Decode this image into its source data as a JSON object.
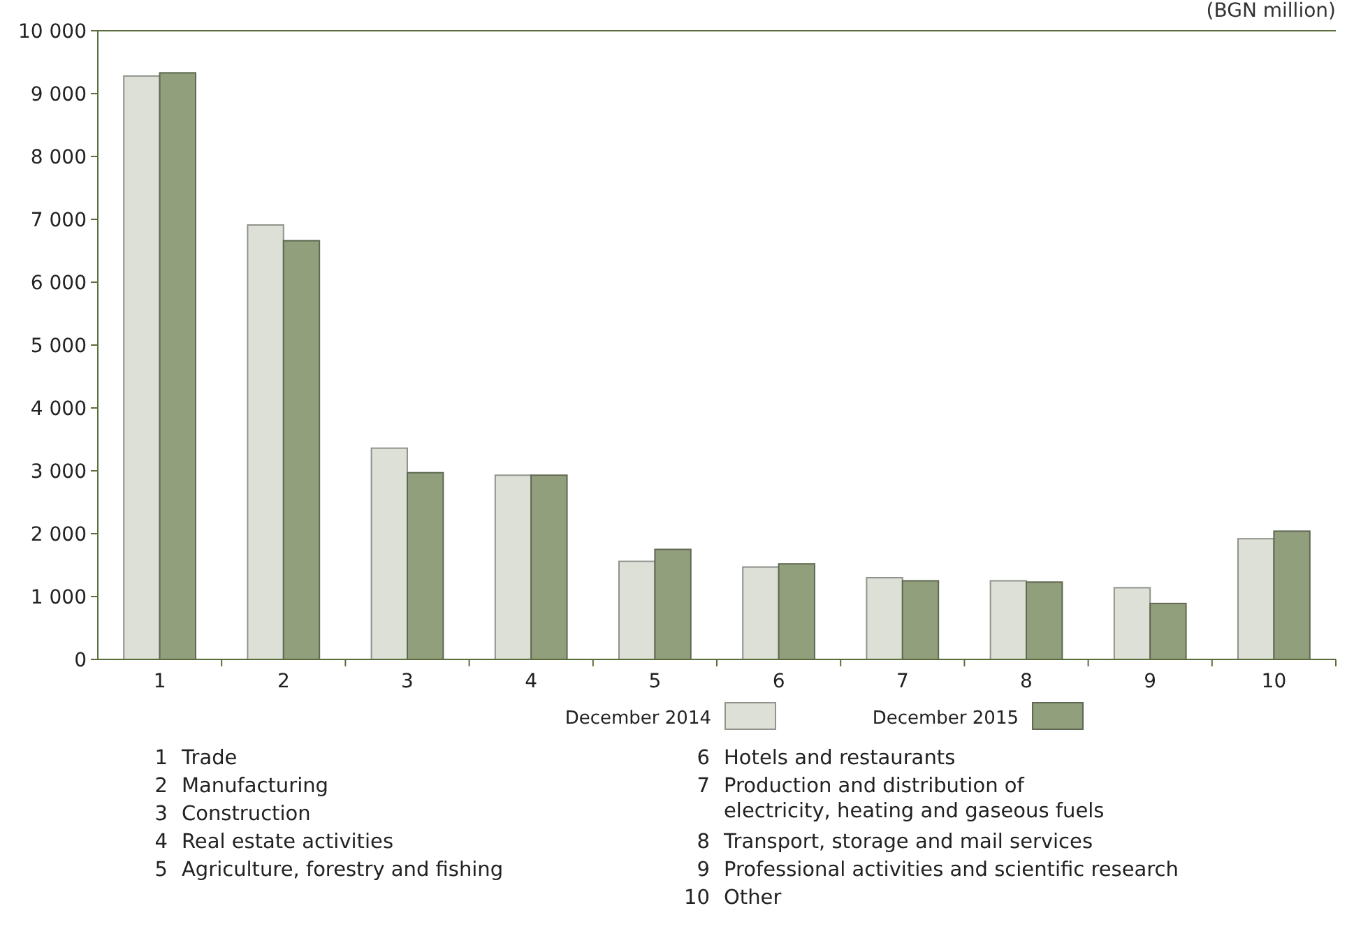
{
  "chart_data": {
    "type": "bar",
    "ylabel": "(BGN million)",
    "categories": [
      "1",
      "2",
      "3",
      "4",
      "5",
      "6",
      "7",
      "8",
      "9",
      "10"
    ],
    "series": [
      {
        "name": "December 2014",
        "color": "#dde0d6",
        "values": [
          9280,
          6910,
          3360,
          2930,
          1560,
          1470,
          1300,
          1250,
          1140,
          1920
        ]
      },
      {
        "name": "December 2015",
        "color": "#929f7d",
        "values": [
          9330,
          6660,
          2970,
          2930,
          1750,
          1520,
          1250,
          1230,
          890,
          2040
        ]
      }
    ],
    "ylim": [
      0,
      10000
    ],
    "yticks": [
      {
        "value": 0,
        "label": "0"
      },
      {
        "value": 1000,
        "label": "1 000"
      },
      {
        "value": 2000,
        "label": "2 000"
      },
      {
        "value": 3000,
        "label": "3 000"
      },
      {
        "value": 4000,
        "label": "4 000"
      },
      {
        "value": 5000,
        "label": "5 000"
      },
      {
        "value": 6000,
        "label": "6 000"
      },
      {
        "value": 7000,
        "label": "7 000"
      },
      {
        "value": 8000,
        "label": "8 000"
      },
      {
        "value": 9000,
        "label": "9 000"
      },
      {
        "value": 10000,
        "label": "10 000"
      }
    ],
    "legend": "bottom",
    "annotations": [
      "1 Trade",
      "2 Manufacturing",
      "3 Construction",
      "4 Real estate activities",
      "5 Agriculture, forestry and fishing",
      "6 Hotels and restaurants",
      "7 Production and distribution of\nelectricity, heating and gaseous fuels",
      "8 Transport, storage and mail services",
      "9 Professional activities and scientific research",
      "10 Other"
    ]
  }
}
